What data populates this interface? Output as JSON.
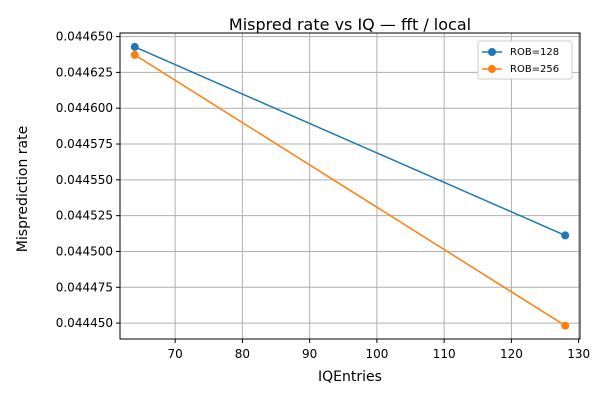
{
  "chart_data": {
    "type": "line",
    "title": "Mispred rate vs IQ — fft / local",
    "xlabel": "IQEntries",
    "ylabel": "Misprediction rate",
    "xlim": [
      61.8,
      130.2
    ],
    "ylim": [
      0.0444389,
      0.0446525
    ],
    "xticks": [
      70,
      80,
      90,
      100,
      110,
      120,
      130
    ],
    "xtick_labels": [
      "70",
      "80",
      "90",
      "100",
      "110",
      "120",
      "130"
    ],
    "yticks": [
      0.04445,
      0.044475,
      0.0445,
      0.044525,
      0.04455,
      0.044575,
      0.0446,
      0.044625,
      0.04465
    ],
    "ytick_labels": [
      "0.044450",
      "0.044475",
      "0.044500",
      "0.044525",
      "0.044550",
      "0.044575",
      "0.044600",
      "0.044625",
      "0.044650"
    ],
    "grid": true,
    "legend_position": "top-right",
    "series": [
      {
        "name": "ROB=128",
        "color": "#1f77b4",
        "marker": "circle",
        "x": [
          64,
          128
        ],
        "y": [
          0.0446428,
          0.0445112
        ]
      },
      {
        "name": "ROB=256",
        "color": "#ff7f0e",
        "marker": "circle",
        "x": [
          64,
          128
        ],
        "y": [
          0.0446372,
          0.0444482
        ]
      }
    ]
  }
}
